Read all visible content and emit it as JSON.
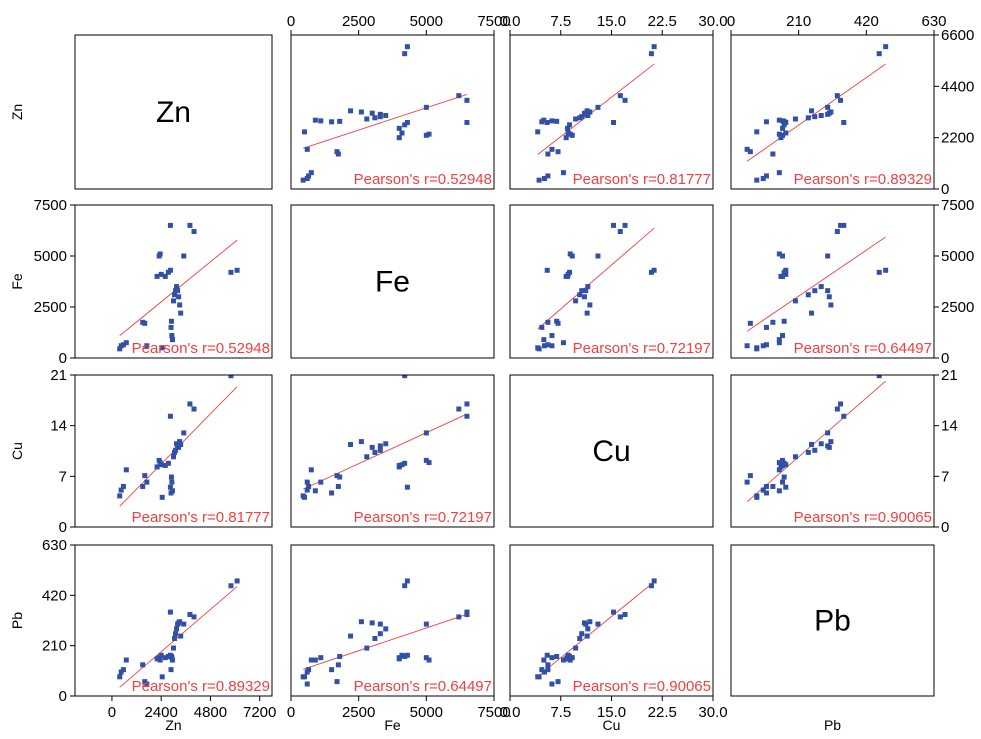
{
  "chart_data": {
    "type": "scatter",
    "variables": [
      "Zn",
      "Fe",
      "Cu",
      "Pb"
    ],
    "axes": {
      "Zn": {
        "range": [
          -1800,
          7800
        ],
        "ticks": [
          0,
          2400,
          4800,
          7200
        ],
        "tick_labels": [
          "0",
          "2400",
          "4800",
          "7200"
        ]
      },
      "Fe": {
        "range": [
          0,
          7500
        ],
        "ticks": [
          0,
          2500,
          5000,
          7500
        ],
        "tick_labels": [
          "0",
          "2500",
          "5000",
          "7500"
        ]
      },
      "Cu": {
        "range": [
          0,
          30
        ],
        "ticks": [
          0,
          7.5,
          15,
          22.5,
          30
        ],
        "tick_labels": [
          "0.0",
          "7.5",
          "15.0",
          "22.5",
          "30.0"
        ]
      },
      "Pb": {
        "range": [
          0,
          630
        ],
        "ticks": [
          0,
          210,
          420,
          630
        ],
        "tick_labels": [
          "0",
          "210",
          "420",
          "630"
        ]
      }
    },
    "y_axes": {
      "Zn": {
        "range": [
          0,
          6600
        ],
        "ticks": [
          0,
          2200,
          4400,
          6600
        ],
        "tick_labels": [
          "0",
          "2200",
          "4400",
          "6600"
        ]
      },
      "Fe": {
        "range": [
          0,
          7500
        ],
        "ticks": [
          0,
          2500,
          5000,
          7500
        ],
        "tick_labels": [
          "0",
          "2500",
          "5000",
          "7500"
        ]
      },
      "Cu": {
        "range": [
          0,
          21
        ],
        "ticks": [
          0,
          7,
          14,
          21
        ],
        "tick_labels": [
          "0",
          "7",
          "14",
          "21"
        ]
      },
      "Pb": {
        "range": [
          0,
          630
        ],
        "ticks": [
          0,
          210,
          420,
          630
        ],
        "tick_labels": [
          "0",
          "210",
          "420",
          "630"
        ]
      }
    },
    "correlations": [
      {
        "pair": [
          "Zn",
          "Fe"
        ],
        "text": "Pearson's r=0.52948"
      },
      {
        "pair": [
          "Zn",
          "Cu"
        ],
        "text": "Pearson's r=0.81777"
      },
      {
        "pair": [
          "Zn",
          "Pb"
        ],
        "text": "Pearson's r=0.89329"
      },
      {
        "pair": [
          "Fe",
          "Cu"
        ],
        "text": "Pearson's r=0.72197"
      },
      {
        "pair": [
          "Fe",
          "Pb"
        ],
        "text": "Pearson's r=0.64497"
      },
      {
        "pair": [
          "Cu",
          "Pb"
        ],
        "text": "Pearson's r=0.90065"
      }
    ],
    "samples": [
      {
        "Zn": 380,
        "Fe": 450,
        "Cu": 4.3,
        "Pb": 80
      },
      {
        "Zn": 450,
        "Fe": 600,
        "Cu": 5.1,
        "Pb": 100
      },
      {
        "Zn": 560,
        "Fe": 650,
        "Cu": 5.6,
        "Pb": 110
      },
      {
        "Zn": 700,
        "Fe": 750,
        "Cu": 7.9,
        "Pb": 150
      },
      {
        "Zn": 1500,
        "Fe": 1750,
        "Cu": 5.6,
        "Pb": 130
      },
      {
        "Zn": 1600,
        "Fe": 1700,
        "Cu": 7.1,
        "Pb": 60
      },
      {
        "Zn": 1700,
        "Fe": 600,
        "Cu": 6.2,
        "Pb": 50
      },
      {
        "Zn": 2200,
        "Fe": 4000,
        "Cu": 8.3,
        "Pb": 155
      },
      {
        "Zn": 2300,
        "Fe": 5000,
        "Cu": 9.2,
        "Pb": 160
      },
      {
        "Zn": 2350,
        "Fe": 5100,
        "Cu": 8.9,
        "Pb": 150
      },
      {
        "Zn": 2400,
        "Fe": 4100,
        "Cu": 8.6,
        "Pb": 170
      },
      {
        "Zn": 2450,
        "Fe": 500,
        "Cu": 4.1,
        "Pb": 80
      },
      {
        "Zn": 2600,
        "Fe": 4000,
        "Cu": 8.5,
        "Pb": 160
      },
      {
        "Zn": 2750,
        "Fe": 4200,
        "Cu": 8.8,
        "Pb": 165
      },
      {
        "Zn": 2850,
        "Fe": 6500,
        "Cu": 15.3,
        "Pb": 350
      },
      {
        "Zn": 2850,
        "Fe": 4300,
        "Cu": 5.5,
        "Pb": 170
      },
      {
        "Zn": 2880,
        "Fe": 1500,
        "Cu": 4.7,
        "Pb": 110
      },
      {
        "Zn": 2900,
        "Fe": 1800,
        "Cu": 6.9,
        "Pb": 165
      },
      {
        "Zn": 2920,
        "Fe": 1100,
        "Cu": 6.2,
        "Pb": 160
      },
      {
        "Zn": 2950,
        "Fe": 900,
        "Cu": 5.0,
        "Pb": 150
      },
      {
        "Zn": 3000,
        "Fe": 2800,
        "Cu": 9.7,
        "Pb": 200
      },
      {
        "Zn": 3050,
        "Fe": 3100,
        "Cu": 10.3,
        "Pb": 240
      },
      {
        "Zn": 3100,
        "Fe": 3300,
        "Cu": 10.6,
        "Pb": 260
      },
      {
        "Zn": 3150,
        "Fe": 3500,
        "Cu": 11.5,
        "Pb": 280
      },
      {
        "Zn": 3200,
        "Fe": 3300,
        "Cu": 11.2,
        "Pb": 300
      },
      {
        "Zn": 3250,
        "Fe": 3000,
        "Cu": 11.0,
        "Pb": 305
      },
      {
        "Zn": 3300,
        "Fe": 2600,
        "Cu": 11.8,
        "Pb": 310
      },
      {
        "Zn": 3350,
        "Fe": 2200,
        "Cu": 11.4,
        "Pb": 250
      },
      {
        "Zn": 3500,
        "Fe": 5000,
        "Cu": 13.0,
        "Pb": 300
      },
      {
        "Zn": 3800,
        "Fe": 6500,
        "Cu": 17.0,
        "Pb": 340
      },
      {
        "Zn": 4000,
        "Fe": 6200,
        "Cu": 16.3,
        "Pb": 330
      },
      {
        "Zn": 5800,
        "Fe": 4200,
        "Cu": 20.9,
        "Pb": 460
      },
      {
        "Zn": 6100,
        "Fe": 4300,
        "Cu": 21.3,
        "Pb": 480
      }
    ]
  }
}
